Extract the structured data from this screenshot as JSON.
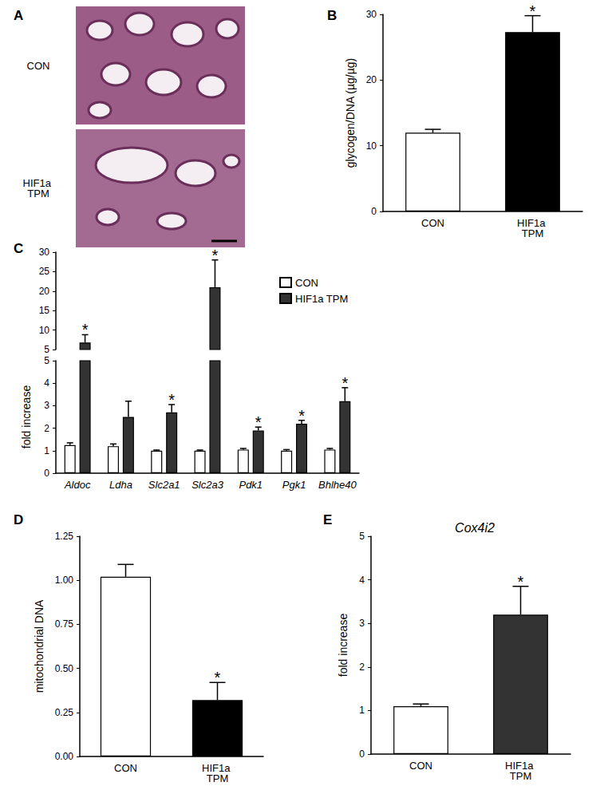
{
  "chart_data": [
    {
      "type": "image",
      "title": "A",
      "categories": [
        "CON",
        "HIF1a TPM"
      ]
    },
    {
      "type": "bar",
      "title": "B",
      "ylabel": "glycogen/DNA (µg/µg)",
      "categories": [
        "CON",
        "HIF1a TPM"
      ],
      "values": [
        12,
        27.3
      ],
      "errors": [
        0.5,
        2.5
      ],
      "colors": [
        "#ffffff",
        "#000000"
      ],
      "annotations": [
        null,
        "*"
      ],
      "ylim": [
        0,
        30
      ],
      "yticks": [
        0,
        10,
        20,
        30
      ],
      "grid": false
    },
    {
      "type": "bar",
      "title": "C",
      "ylabel": "fold increase",
      "categories": [
        "Aldoc",
        "Ldha",
        "Slc2a1",
        "Slc2a3",
        "Pdk1",
        "Pgk1",
        "Bhlhe40"
      ],
      "series": [
        {
          "name": "CON",
          "color": "#ffffff",
          "values": [
            1.25,
            1.2,
            1.0,
            1.0,
            1.05,
            1.0,
            1.05
          ],
          "errors": [
            0.1,
            0.1,
            0.03,
            0.03,
            0.05,
            0.05,
            0.05
          ],
          "annotations": [
            null,
            null,
            null,
            null,
            null,
            null,
            null
          ]
        },
        {
          "name": "HIF1a TPM",
          "color": "#333333",
          "values": [
            6.8,
            2.5,
            2.7,
            21,
            1.9,
            2.2,
            3.2
          ],
          "errors": [
            2.0,
            0.7,
            0.35,
            7,
            0.15,
            0.15,
            0.6
          ],
          "annotations": [
            "*",
            null,
            "*",
            "*",
            "*",
            "*",
            "*"
          ]
        }
      ],
      "ylim": [
        0,
        30
      ],
      "yticks": [
        0,
        1,
        2,
        3,
        4,
        5,
        10,
        15,
        20,
        25,
        30
      ],
      "ybreak": 5,
      "legend": "upper right",
      "grid": false
    },
    {
      "type": "bar",
      "title": "D",
      "ylabel": "mitochondrial DNA",
      "categories": [
        "CON",
        "HIF1a TPM"
      ],
      "values": [
        1.02,
        0.32
      ],
      "errors": [
        0.07,
        0.1
      ],
      "colors": [
        "#ffffff",
        "#000000"
      ],
      "annotations": [
        null,
        "*"
      ],
      "ylim": [
        0,
        1.25
      ],
      "yticks": [
        {
          "value": 0,
          "label": "0.00"
        },
        {
          "value": 0.25,
          "label": "0.25"
        },
        {
          "value": 0.5,
          "label": "0.50"
        },
        {
          "value": 0.75,
          "label": "0.75"
        },
        {
          "value": 1,
          "label": "1.00"
        },
        {
          "value": 1.25,
          "label": "1.25"
        }
      ],
      "grid": false
    },
    {
      "type": "bar",
      "title": "E",
      "subtitle": "Cox4i2",
      "ylabel": "fold increase",
      "categories": [
        "CON",
        "HIF1a TPM"
      ],
      "values": [
        1.1,
        3.2
      ],
      "errors": [
        0.05,
        0.65
      ],
      "colors": [
        "#ffffff",
        "#333333"
      ],
      "annotations": [
        null,
        "*"
      ],
      "ylim": [
        0,
        5
      ],
      "yticks": [
        0,
        1,
        2,
        3,
        4,
        5
      ],
      "grid": false
    }
  ]
}
